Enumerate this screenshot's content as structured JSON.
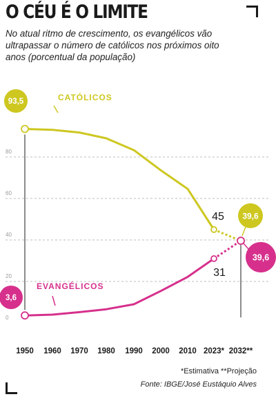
{
  "header": {
    "title": "O CÉU É O LIMITE",
    "subtitle": "No atual ritmo de crescimento, os evangélicos vão ultrapassar o número de católicos nos próximos oito anos (porcentual da população)"
  },
  "footer": {
    "note": "*Estimativa  **Projeção",
    "source": "Fonte: IBGE/José Eustáquio Alves"
  },
  "colors": {
    "catolicos": "#cdc720",
    "evangelicos": "#d6308c",
    "grid": "#bcbcbc",
    "axis_label": "#9a9a9a",
    "text": "#1a1a1a"
  },
  "chart_data": {
    "type": "line",
    "x": [
      "1950",
      "1960",
      "1970",
      "1980",
      "1990",
      "2000",
      "2010",
      "2023*",
      "2032**"
    ],
    "ylim": [
      0,
      100
    ],
    "yticks": [
      0,
      20,
      40,
      60,
      80
    ],
    "grid": true,
    "series": [
      {
        "name": "CATÓLICOS",
        "values": [
          93.5,
          93.1,
          91.8,
          89.0,
          83.3,
          73.6,
          64.6,
          45,
          39.6
        ],
        "labels": {
          "first": "93,5",
          "estimate": "45",
          "last": "39,6"
        }
      },
      {
        "name": "EVANGÉLICOS",
        "values": [
          3.6,
          4.0,
          5.2,
          6.6,
          9.0,
          15.4,
          22.2,
          31,
          39.6
        ],
        "labels": {
          "first": "3,6",
          "estimate": "31",
          "last": "39,6"
        }
      }
    ]
  }
}
